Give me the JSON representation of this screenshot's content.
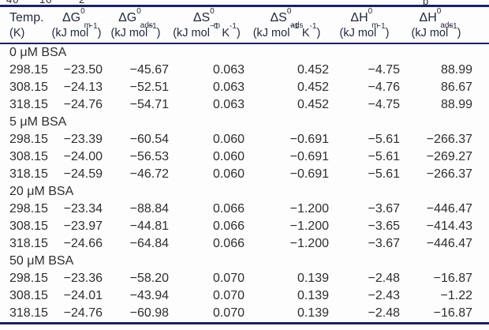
{
  "fragments": [
    "40",
    "10",
    "2",
    "p"
  ],
  "colors": {
    "rule": "#1c2161",
    "header_text": "#222a3c",
    "body_text": "#2e2e2e",
    "background": "#fdfdfd"
  },
  "table": {
    "header": [
      {
        "line1": [
          {
            "t": "Temp."
          }
        ],
        "line2": [
          {
            "t": "(K)"
          }
        ]
      },
      {
        "line1": [
          {
            "t": "ΔG"
          },
          {
            "sup": "0"
          },
          {
            "sub": "m"
          }
        ],
        "line2": [
          {
            "t": "(kJ mol"
          },
          {
            "sup": "−1"
          },
          {
            "t": ")"
          }
        ]
      },
      {
        "line1": [
          {
            "t": "ΔG"
          },
          {
            "sup": "0"
          },
          {
            "sub": "ads"
          }
        ],
        "line2": [
          {
            "t": "(kJ mol"
          },
          {
            "sup": "−1"
          },
          {
            "t": ")"
          }
        ]
      },
      {
        "line1": [
          {
            "t": "ΔS"
          },
          {
            "sup": "0"
          },
          {
            "sub": "m"
          }
        ],
        "line2": [
          {
            "t": "(kJ mol"
          },
          {
            "sup": "−1"
          },
          {
            "t": " K"
          },
          {
            "sup": "-1"
          },
          {
            "t": ")"
          }
        ]
      },
      {
        "line1": [
          {
            "t": "ΔS"
          },
          {
            "sup": "0"
          },
          {
            "sub": "ads"
          }
        ],
        "line2": [
          {
            "t": "(kJ mol"
          },
          {
            "sup": "−1"
          },
          {
            "t": " K"
          },
          {
            "sup": "-1"
          },
          {
            "t": ")"
          }
        ]
      },
      {
        "line1": [
          {
            "t": "ΔH"
          },
          {
            "sup": "0"
          },
          {
            "sub": "m"
          }
        ],
        "line2": [
          {
            "t": "(kJ mol"
          },
          {
            "sup": "−1"
          },
          {
            "t": ")"
          }
        ]
      },
      {
        "line1": [
          {
            "t": "ΔH"
          },
          {
            "sup": "0"
          },
          {
            "sub": "ads"
          }
        ],
        "line2": [
          {
            "t": "(kJ mol"
          },
          {
            "sup": "−1"
          },
          {
            "t": ")"
          }
        ]
      }
    ],
    "sections": [
      {
        "label": "0 μM BSA",
        "rows": [
          [
            "298.15",
            "−23.50",
            "−45.67",
            "0.063",
            "0.452",
            "−4.75",
            "88.99"
          ],
          [
            "308.15",
            "−24.13",
            "−52.51",
            "0.063",
            "0.452",
            "−4.76",
            "86.67"
          ],
          [
            "318.15",
            "−24.76",
            "−54.71",
            "0.063",
            "0.452",
            "−4.75",
            "88.99"
          ]
        ]
      },
      {
        "label": "5 μM BSA",
        "rows": [
          [
            "298.15",
            "−23.39",
            "−60.54",
            "0.060",
            "−0.691",
            "−5.61",
            "−266.37"
          ],
          [
            "308.15",
            "−24.00",
            "−56.53",
            "0.060",
            "−0.691",
            "−5.61",
            "−269.27"
          ],
          [
            "318.15",
            "−24.59",
            "−46.72",
            "0.060",
            "−0.691",
            "−5.61",
            "−266.37"
          ]
        ]
      },
      {
        "label": "20 μM BSA",
        "rows": [
          [
            "298.15",
            "−23.34",
            "−88.84",
            "0.066",
            "−1.200",
            "−3.67",
            "−446.47"
          ],
          [
            "308.15",
            "−23.97",
            "−44.81",
            "0.066",
            "−1.200",
            "−3.65",
            "−414.43"
          ],
          [
            "318.15",
            "−24.66",
            "−64.84",
            "0.066",
            "−1.200",
            "−3.67",
            "−446.47"
          ]
        ]
      },
      {
        "label": "50 μM BSA",
        "rows": [
          [
            "298.15",
            "−23.36",
            "−58.20",
            "0.070",
            "0.139",
            "−2.48",
            "−16.87"
          ],
          [
            "308.15",
            "−24.01",
            "−43.94",
            "0.070",
            "0.139",
            "−2.43",
            "−1.22"
          ],
          [
            "318.15",
            "−24.76",
            "−60.98",
            "0.070",
            "0.139",
            "−2.48",
            "−16.87"
          ]
        ]
      }
    ]
  }
}
